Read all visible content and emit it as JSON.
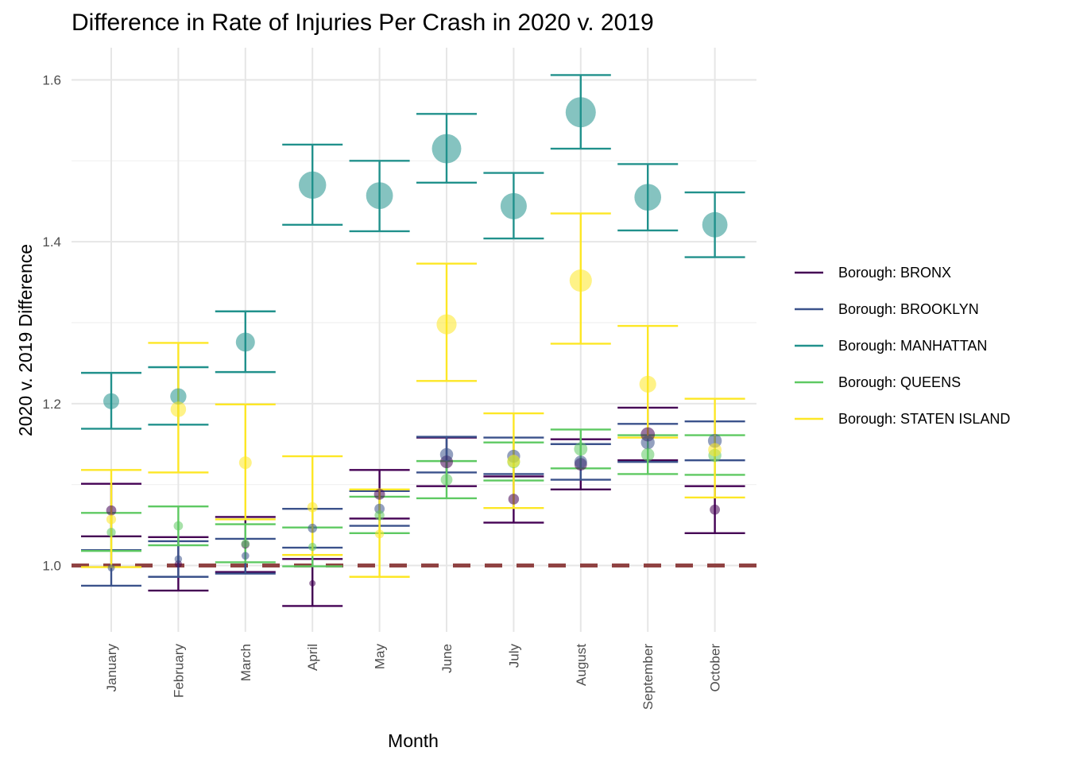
{
  "chart_data": {
    "type": "scatter",
    "title": "Difference in Rate of Injuries Per Crash in 2020 v. 2019",
    "xlabel": "Month",
    "ylabel": "2020 v. 2019 Difference",
    "categories": [
      "January",
      "February",
      "March",
      "April",
      "May",
      "June",
      "July",
      "August",
      "September",
      "October"
    ],
    "ylim": [
      0.92,
      1.645
    ],
    "y_ticks": [
      "1.0",
      "1.2",
      "1.4",
      "1.6"
    ],
    "grid": true,
    "legend_position": "right",
    "reference_line": {
      "y": 1.0,
      "style": "dashed",
      "color": "#8b3a3a"
    },
    "series": [
      {
        "name": "Borough: BRONX",
        "color": "#440154",
        "values": [
          1.068,
          1.002,
          1.026,
          0.978,
          1.088,
          1.128,
          1.082,
          1.125,
          1.162,
          1.069
        ],
        "lower": [
          1.036,
          0.969,
          0.992,
          0.95,
          1.058,
          1.098,
          1.053,
          1.094,
          1.13,
          1.04
        ],
        "upper": [
          1.101,
          1.035,
          1.06,
          1.008,
          1.118,
          1.158,
          1.11,
          1.156,
          1.195,
          1.098
        ]
      },
      {
        "name": "Borough: BROOKLYN",
        "color": "#3b528b",
        "values": [
          0.997,
          1.008,
          1.012,
          1.046,
          1.07,
          1.137,
          1.135,
          1.128,
          1.152,
          1.154
        ],
        "lower": [
          0.975,
          0.986,
          0.99,
          1.022,
          1.049,
          1.115,
          1.113,
          1.106,
          1.128,
          1.13
        ],
        "upper": [
          1.019,
          1.03,
          1.033,
          1.07,
          1.092,
          1.159,
          1.158,
          1.15,
          1.175,
          1.178
        ]
      },
      {
        "name": "Borough: MANHATTAN",
        "color": "#21918c",
        "values": [
          1.203,
          1.209,
          1.276,
          1.47,
          1.457,
          1.515,
          1.444,
          1.56,
          1.455,
          1.421
        ],
        "lower": [
          1.169,
          1.174,
          1.239,
          1.421,
          1.413,
          1.473,
          1.404,
          1.515,
          1.414,
          1.381
        ],
        "upper": [
          1.238,
          1.245,
          1.314,
          1.52,
          1.5,
          1.558,
          1.485,
          1.606,
          1.496,
          1.461
        ]
      },
      {
        "name": "Borough: QUEENS",
        "color": "#5ec962",
        "values": [
          1.041,
          1.049,
          1.027,
          1.023,
          1.062,
          1.106,
          1.128,
          1.144,
          1.137,
          1.136
        ],
        "lower": [
          1.018,
          1.025,
          1.004,
          0.999,
          1.04,
          1.083,
          1.105,
          1.12,
          1.113,
          1.112
        ],
        "upper": [
          1.065,
          1.073,
          1.051,
          1.047,
          1.085,
          1.129,
          1.152,
          1.168,
          1.161,
          1.161
        ]
      },
      {
        "name": "Borough: STATEN ISLAND",
        "color": "#fde725",
        "values": [
          1.057,
          1.193,
          1.127,
          1.072,
          1.039,
          1.298,
          1.129,
          1.352,
          1.224,
          1.143
        ],
        "lower": [
          0.998,
          1.115,
          1.057,
          1.013,
          0.986,
          1.228,
          1.071,
          1.274,
          1.158,
          1.084
        ],
        "upper": [
          1.118,
          1.275,
          1.199,
          1.135,
          1.094,
          1.373,
          1.188,
          1.435,
          1.296,
          1.206
        ]
      }
    ]
  }
}
